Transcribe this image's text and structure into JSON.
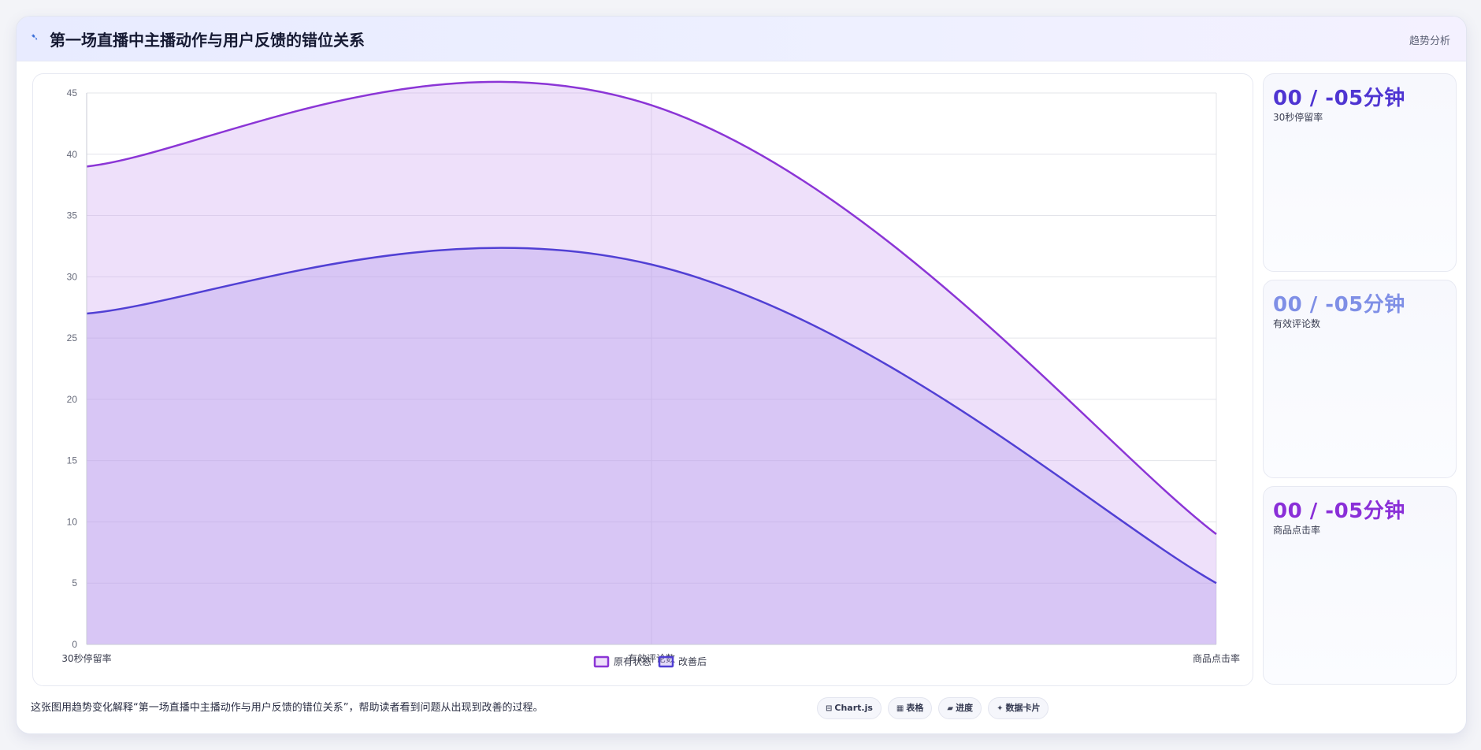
{
  "header": {
    "title": "第一场直播中主播动作与用户反馈的错位关系",
    "tag": "趋势分析"
  },
  "chart_data": {
    "type": "area",
    "categories": [
      "30秒停留率",
      "有效评论数",
      "商品点击率"
    ],
    "series": [
      {
        "name": "原有状态",
        "values": [
          39,
          44,
          9
        ],
        "color": "#8b35d6",
        "fill": "rgba(205,165,240,0.35)"
      },
      {
        "name": "改善后",
        "values": [
          27,
          31,
          5
        ],
        "color": "#5140d4",
        "fill": "rgba(175,150,235,0.35)"
      }
    ],
    "ylim": [
      0,
      45
    ],
    "yticks": [
      0,
      5,
      10,
      15,
      20,
      25,
      30,
      35,
      40,
      45
    ],
    "grid": true,
    "legend": "bottom-center"
  },
  "cards": [
    {
      "value": "00 / -05分钟",
      "label": "30秒停留率",
      "color": "#4f35d2"
    },
    {
      "value": "00 / -05分钟",
      "label": "有效评论数",
      "color": "#7f8fe6"
    },
    {
      "value": "00 / -05分钟",
      "label": "商品点击率",
      "color": "#8a2fd8"
    }
  ],
  "footer": {
    "text": "这张图用趋势变化解释“第一场直播中主播动作与用户反馈的错位关系”，帮助读者看到问题从出现到改善的过程。",
    "chips": [
      {
        "icon": "⊟",
        "label": "Chart.js"
      },
      {
        "icon": "▦",
        "label": "表格"
      },
      {
        "icon": "▰",
        "label": "进度"
      },
      {
        "icon": "✦",
        "label": "数据卡片"
      }
    ]
  }
}
